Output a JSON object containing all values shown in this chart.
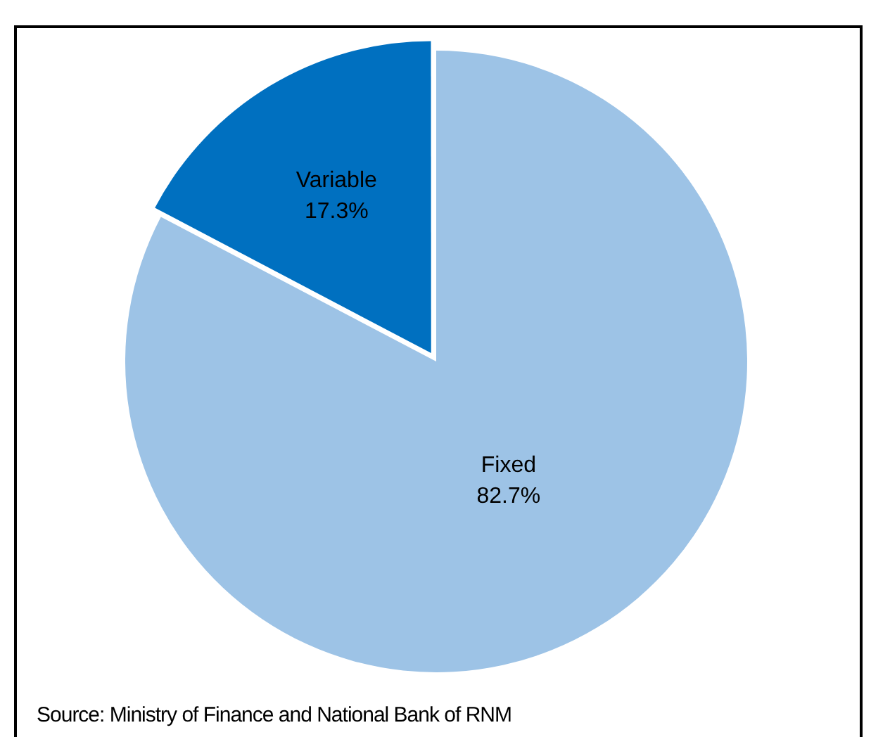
{
  "chart_data": {
    "type": "pie",
    "categories": [
      "Fixed",
      "Variable"
    ],
    "values": [
      82.7,
      17.3
    ],
    "colors": [
      "#9dc3e6",
      "#0070c0"
    ],
    "value_labels": [
      "82.7%",
      "17.3%"
    ],
    "legend": false,
    "annotations": [
      "Source: Ministry of Finance and National Bank of RNM"
    ]
  }
}
